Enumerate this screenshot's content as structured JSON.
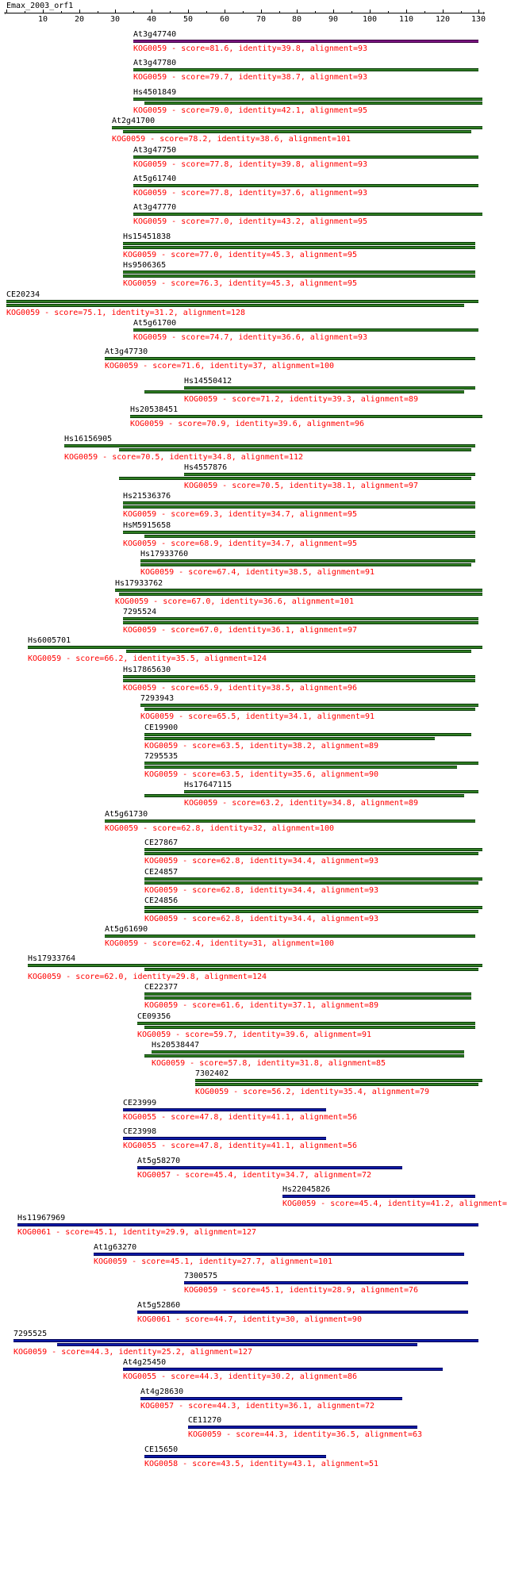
{
  "query_name": "Emax_2003_orf1",
  "axis": {
    "min": 0,
    "max": 131,
    "ticks": [
      10,
      20,
      30,
      40,
      50,
      60,
      70,
      80,
      90,
      100,
      110,
      120,
      130
    ]
  },
  "colors": {
    "green": "#2f7d22",
    "blue": "#0b1aa6",
    "purple": "#7a1380",
    "red": "#ff0000"
  },
  "hits": [
    {
      "name": "At3g47740",
      "desc": "KOG0059 - score=81.6, identity=39.8, alignment=93",
      "color": "purple",
      "bars": [
        [
          35,
          130
        ]
      ]
    },
    {
      "name": "At3g47780",
      "desc": "KOG0059 - score=79.7, identity=38.7, alignment=93",
      "color": "green",
      "bars": [
        [
          35,
          130
        ]
      ]
    },
    {
      "name": "Hs4501849",
      "desc": "KOG0059 - score=79.0, identity=42.1, alignment=95",
      "color": "green",
      "bars": [
        [
          35,
          131
        ],
        [
          38,
          131
        ]
      ]
    },
    {
      "name": "At2g41700",
      "desc": "KOG0059 - score=78.2, identity=38.6, alignment=101",
      "color": "green",
      "bars": [
        [
          29,
          131
        ],
        [
          32,
          128
        ]
      ]
    },
    {
      "name": "At3g47750",
      "desc": "KOG0059 - score=77.8, identity=39.8, alignment=93",
      "color": "green",
      "bars": [
        [
          35,
          130
        ]
      ]
    },
    {
      "name": "At5g61740",
      "desc": "KOG0059 - score=77.8, identity=37.6, alignment=93",
      "color": "green",
      "bars": [
        [
          35,
          130
        ]
      ]
    },
    {
      "name": "At3g47770",
      "desc": "KOG0059 - score=77.0, identity=43.2, alignment=95",
      "color": "green",
      "bars": [
        [
          35,
          131
        ]
      ]
    },
    {
      "name": "Hs15451838",
      "desc": "KOG0059 - score=77.0, identity=45.3, alignment=95",
      "color": "green",
      "bars": [
        [
          32,
          129
        ],
        [
          32,
          129
        ]
      ]
    },
    {
      "name": "Hs9506365",
      "desc": "KOG0059 - score=76.3, identity=45.3, alignment=95",
      "color": "green",
      "bars": [
        [
          32,
          129
        ],
        [
          32,
          129
        ]
      ]
    },
    {
      "name": "CE20234",
      "desc": "KOG0059 - score=75.1, identity=31.2, alignment=128",
      "color": "green",
      "bars": [
        [
          0,
          130
        ],
        [
          0,
          126
        ]
      ]
    },
    {
      "name": "At5g61700",
      "desc": "KOG0059 - score=74.7, identity=36.6, alignment=93",
      "color": "green",
      "bars": [
        [
          35,
          130
        ]
      ]
    },
    {
      "name": "At3g47730",
      "desc": "KOG0059 - score=71.6, identity=37, alignment=100",
      "color": "green",
      "bars": [
        [
          27,
          129
        ]
      ]
    },
    {
      "name": "Hs14550412",
      "desc": "KOG0059 - score=71.2, identity=39.3, alignment=89",
      "color": "green",
      "bars": [
        [
          49,
          129
        ],
        [
          38,
          126
        ]
      ]
    },
    {
      "name": "Hs20538451",
      "desc": "KOG0059 - score=70.9, identity=39.6, alignment=96",
      "color": "green",
      "bars": [
        [
          34,
          131
        ]
      ]
    },
    {
      "name": "Hs16156905",
      "desc": "KOG0059 - score=70.5, identity=34.8, alignment=112",
      "color": "green",
      "bars": [
        [
          16,
          129
        ],
        [
          31,
          128
        ]
      ]
    },
    {
      "name": "Hs4557876",
      "desc": "KOG0059 - score=70.5, identity=38.1, alignment=97",
      "color": "green",
      "bars": [
        [
          49,
          129
        ],
        [
          31,
          128
        ]
      ]
    },
    {
      "name": "Hs21536376",
      "desc": "KOG0059 - score=69.3, identity=34.7, alignment=95",
      "color": "green",
      "bars": [
        [
          32,
          129
        ],
        [
          32,
          129
        ]
      ]
    },
    {
      "name": "HsM5915658",
      "desc": "KOG0059 - score=68.9, identity=34.7, alignment=95",
      "color": "green",
      "bars": [
        [
          32,
          129
        ],
        [
          38,
          129
        ]
      ]
    },
    {
      "name": "Hs17933760",
      "desc": "KOG0059 - score=67.4, identity=38.5, alignment=91",
      "color": "green",
      "bars": [
        [
          37,
          129
        ],
        [
          37,
          128
        ]
      ]
    },
    {
      "name": "Hs17933762",
      "desc": "KOG0059 - score=67.0, identity=36.6, alignment=101",
      "color": "green",
      "bars": [
        [
          30,
          131
        ],
        [
          31,
          131
        ]
      ]
    },
    {
      "name": "7295524",
      "desc": "KOG0059 - score=67.0, identity=36.1, alignment=97",
      "color": "green",
      "bars": [
        [
          32,
          130
        ],
        [
          32,
          130
        ]
      ]
    },
    {
      "name": "Hs6005701",
      "desc": "KOG0059 - score=66.2, identity=35.5, alignment=124",
      "color": "green",
      "bars": [
        [
          6,
          131
        ],
        [
          33,
          128
        ]
      ]
    },
    {
      "name": "Hs17865630",
      "desc": "KOG0059 - score=65.9, identity=38.5, alignment=96",
      "color": "green",
      "bars": [
        [
          32,
          129
        ],
        [
          32,
          129
        ]
      ]
    },
    {
      "name": "7293943",
      "desc": "KOG0059 - score=65.5, identity=34.1, alignment=91",
      "color": "green",
      "bars": [
        [
          37,
          130
        ],
        [
          38,
          129
        ]
      ]
    },
    {
      "name": "CE19900",
      "desc": "KOG0059 - score=63.5, identity=38.2, alignment=89",
      "color": "green",
      "bars": [
        [
          38,
          128
        ],
        [
          38,
          118
        ]
      ]
    },
    {
      "name": "7295535",
      "desc": "KOG0059 - score=63.5, identity=35.6, alignment=90",
      "color": "green",
      "bars": [
        [
          38,
          130
        ],
        [
          38,
          124
        ]
      ]
    },
    {
      "name": "Hs17647115",
      "desc": "KOG0059 - score=63.2, identity=34.8, alignment=89",
      "color": "green",
      "bars": [
        [
          49,
          130
        ],
        [
          38,
          126
        ]
      ]
    },
    {
      "name": "At5g61730",
      "desc": "KOG0059 - score=62.8, identity=32, alignment=100",
      "color": "green",
      "bars": [
        [
          27,
          129
        ]
      ]
    },
    {
      "name": "CE27867",
      "desc": "KOG0059 - score=62.8, identity=34.4, alignment=93",
      "color": "green",
      "bars": [
        [
          38,
          131
        ],
        [
          38,
          130
        ]
      ]
    },
    {
      "name": "CE24857",
      "desc": "KOG0059 - score=62.8, identity=34.4, alignment=93",
      "color": "green",
      "bars": [
        [
          38,
          131
        ],
        [
          38,
          130
        ]
      ]
    },
    {
      "name": "CE24856",
      "desc": "KOG0059 - score=62.8, identity=34.4, alignment=93",
      "color": "green",
      "bars": [
        [
          38,
          131
        ],
        [
          38,
          130
        ]
      ]
    },
    {
      "name": "At5g61690",
      "desc": "KOG0059 - score=62.4, identity=31, alignment=100",
      "color": "green",
      "bars": [
        [
          27,
          129
        ]
      ]
    },
    {
      "name": "Hs17933764",
      "desc": "KOG0059 - score=62.0, identity=29.8, alignment=124",
      "color": "green",
      "bars": [
        [
          6,
          131
        ],
        [
          38,
          130
        ]
      ]
    },
    {
      "name": "CE22377",
      "desc": "KOG0059 - score=61.6, identity=37.1, alignment=89",
      "color": "green",
      "bars": [
        [
          38,
          128
        ],
        [
          38,
          128
        ]
      ]
    },
    {
      "name": "CE09356",
      "desc": "KOG0059 - score=59.7, identity=39.6, alignment=91",
      "color": "green",
      "bars": [
        [
          36,
          129
        ],
        [
          38,
          129
        ]
      ]
    },
    {
      "name": "Hs20538447",
      "desc": "KOG0059 - score=57.8, identity=31.8, alignment=85",
      "color": "green",
      "bars": [
        [
          40,
          126
        ],
        [
          38,
          126
        ]
      ]
    },
    {
      "name": "7302402",
      "desc": "KOG0059 - score=56.2, identity=35.4, alignment=79",
      "color": "green",
      "bars": [
        [
          52,
          131
        ],
        [
          52,
          130
        ]
      ]
    },
    {
      "name": "CE23999",
      "desc": "KOG0055 - score=47.8, identity=41.1, alignment=56",
      "color": "blue",
      "bars": [
        [
          32,
          88
        ]
      ]
    },
    {
      "name": "CE23998",
      "desc": "KOG0055 - score=47.8, identity=41.1, alignment=56",
      "color": "blue",
      "bars": [
        [
          32,
          88
        ]
      ]
    },
    {
      "name": "At5g58270",
      "desc": "KOG0057 - score=45.4, identity=34.7, alignment=72",
      "color": "blue",
      "bars": [
        [
          36,
          109
        ]
      ]
    },
    {
      "name": "Hs22045826",
      "desc": "KOG0059 - score=45.4, identity=41.2, alignment=",
      "color": "blue",
      "bars": [
        [
          76,
          129
        ]
      ]
    },
    {
      "name": "Hs11967969",
      "desc": "KOG0061 - score=45.1, identity=29.9, alignment=127",
      "color": "blue",
      "bars": [
        [
          3,
          130
        ]
      ]
    },
    {
      "name": "At1g63270",
      "desc": "KOG0059 - score=45.1, identity=27.7, alignment=101",
      "color": "blue",
      "bars": [
        [
          24,
          126
        ]
      ]
    },
    {
      "name": "7300575",
      "desc": "KOG0059 - score=45.1, identity=28.9, alignment=76",
      "color": "blue",
      "bars": [
        [
          49,
          127
        ]
      ]
    },
    {
      "name": "At5g52860",
      "desc": "KOG0061 - score=44.7, identity=30, alignment=90",
      "color": "blue",
      "bars": [
        [
          36,
          127
        ]
      ]
    },
    {
      "name": "7295525",
      "desc": "KOG0059 - score=44.3, identity=25.2, alignment=127",
      "color": "blue",
      "bars": [
        [
          2,
          130
        ],
        [
          14,
          113
        ]
      ]
    },
    {
      "name": "At4g25450",
      "desc": "KOG0055 - score=44.3, identity=30.2, alignment=86",
      "color": "blue",
      "bars": [
        [
          32,
          120
        ]
      ]
    },
    {
      "name": "At4g28630",
      "desc": "KOG0057 - score=44.3, identity=36.1, alignment=72",
      "color": "blue",
      "bars": [
        [
          37,
          109
        ]
      ]
    },
    {
      "name": "CE11270",
      "desc": "KOG0059 - score=44.3, identity=36.5, alignment=63",
      "color": "blue",
      "bars": [
        [
          50,
          113
        ]
      ]
    },
    {
      "name": "CE15650",
      "desc": "KOG0058 - score=43.5, identity=43.1, alignment=51",
      "color": "blue",
      "bars": [
        [
          38,
          88
        ]
      ]
    }
  ]
}
